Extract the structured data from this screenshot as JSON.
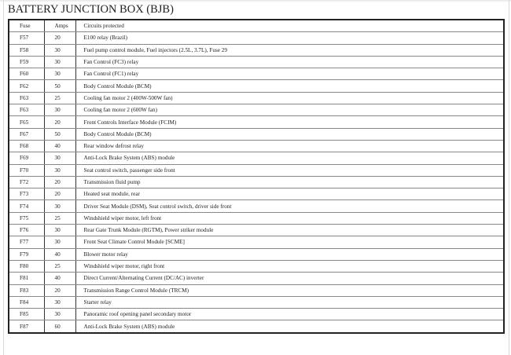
{
  "title": "BATTERY JUNCTION BOX (BJB)",
  "table": {
    "headers": [
      "Fuse",
      "Amps",
      "Circuits protected"
    ],
    "rows": [
      [
        "F57",
        "20",
        "E100 relay (Brazil)"
      ],
      [
        "F58",
        "30",
        "Fuel pump control module, Fuel injectors (2.5L, 3.7L), Fuse 29"
      ],
      [
        "F59",
        "30",
        "Fan Control (FC3) relay"
      ],
      [
        "F60",
        "30",
        "Fan Control (FC1) relay"
      ],
      [
        "F62",
        "50",
        "Body Control Module (BCM)"
      ],
      [
        "F63",
        "25",
        "Cooling fan motor 2 (400W-500W fan)"
      ],
      [
        "F63",
        "30",
        "Cooling fan motor 2 (600W fan)"
      ],
      [
        "F65",
        "20",
        "Front Controls Interface Module (FCIM)"
      ],
      [
        "F67",
        "50",
        "Body Control Module (BCM)"
      ],
      [
        "F68",
        "40",
        "Rear window defrost relay"
      ],
      [
        "F69",
        "30",
        "Anti-Lock Brake System (ABS) module"
      ],
      [
        "F70",
        "30",
        "Seat control switch, passenger side front"
      ],
      [
        "F72",
        "20",
        "Transmission fluid pump"
      ],
      [
        "F73",
        "20",
        "Heated seat module, rear"
      ],
      [
        "F74",
        "30",
        "Driver Seat Module (DSM), Seat control switch, driver side front"
      ],
      [
        "F75",
        "25",
        "Windshield wiper motor, left front"
      ],
      [
        "F76",
        "30",
        "Rear Gate Trunk Module (RGTM), Power striker module"
      ],
      [
        "F77",
        "30",
        "Front Seat Climate Control Module [SCME]"
      ],
      [
        "F79",
        "40",
        "Blower motor relay"
      ],
      [
        "F80",
        "25",
        "Windshield wiper motor, right front"
      ],
      [
        "F81",
        "40",
        "Direct Current/Alternating Current (DC/AC) inverter"
      ],
      [
        "F83",
        "20",
        "Transmission Range Control Module (TRCM)"
      ],
      [
        "F84",
        "30",
        "Starter relay"
      ],
      [
        "F85",
        "30",
        "Panoramic roof opening panel secondary motor"
      ],
      [
        "F87",
        "60",
        "Anti-Lock Brake System (ABS) module"
      ]
    ]
  }
}
